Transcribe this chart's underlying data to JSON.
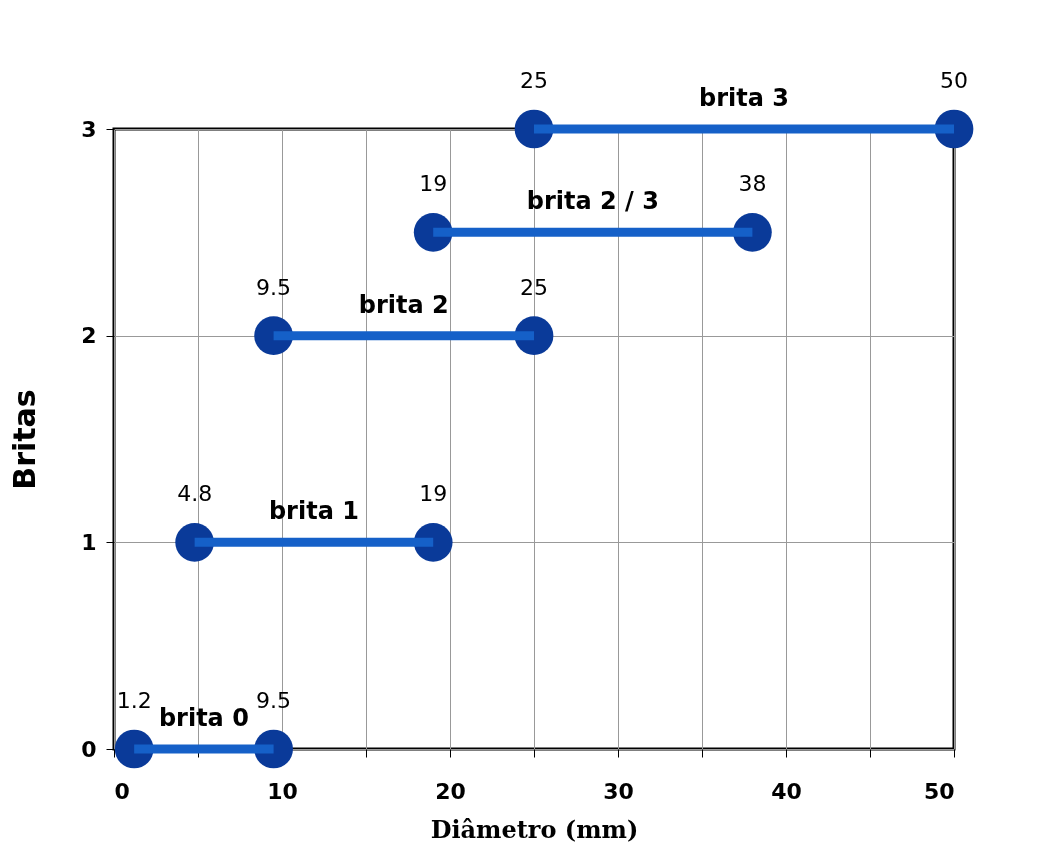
{
  "chart_data": {
    "type": "line",
    "xlabel": "Diâmetro (mm)",
    "ylabel": "Britas",
    "xlim": [
      0,
      50
    ],
    "ylim": [
      0,
      3
    ],
    "xticks": [
      0,
      {
        "value": 5,
        "label": null
      },
      10,
      {
        "value": 15,
        "label": null
      },
      20,
      {
        "value": 25,
        "label": null
      },
      30,
      {
        "value": 35,
        "label": null
      },
      40,
      {
        "value": 45,
        "label": null
      },
      50
    ],
    "yticks": [
      0,
      1,
      2,
      3
    ],
    "grid": true,
    "legend": false,
    "marker": "circle",
    "line_style": "solid",
    "series": [
      {
        "name": "brita 0",
        "color": "#1560c8",
        "x": [
          1.2,
          9.5
        ],
        "values": [
          0,
          0
        ]
      },
      {
        "name": "brita 1",
        "color": "#1560c8",
        "x": [
          4.8,
          19
        ],
        "values": [
          1,
          1
        ]
      },
      {
        "name": "brita 2",
        "color": "#1560c8",
        "x": [
          9.5,
          25
        ],
        "values": [
          2,
          2
        ]
      },
      {
        "name": "brita 2 / 3",
        "color": "#1560c8",
        "x": [
          19,
          38
        ],
        "values": [
          2.5,
          2.5
        ]
      },
      {
        "name": "brita 3",
        "color": "#1560c8",
        "x": [
          25,
          50
        ],
        "values": [
          3,
          3
        ]
      }
    ],
    "annotations": [
      {
        "text": "1.2",
        "x": 1.2,
        "y": 0
      },
      {
        "text": "9.5",
        "x": 9.5,
        "y": 0
      },
      {
        "text": "4.8",
        "x": 4.8,
        "y": 1
      },
      {
        "text": "19",
        "x": 19,
        "y": 1
      },
      {
        "text": "9.5",
        "x": 9.5,
        "y": 2
      },
      {
        "text": "25",
        "x": 25,
        "y": 2
      },
      {
        "text": "19",
        "x": 19,
        "y": 2.5
      },
      {
        "text": "38",
        "x": 38,
        "y": 2.5
      },
      {
        "text": "25",
        "x": 25,
        "y": 3
      },
      {
        "text": "50",
        "x": 50,
        "y": 3
      }
    ]
  }
}
